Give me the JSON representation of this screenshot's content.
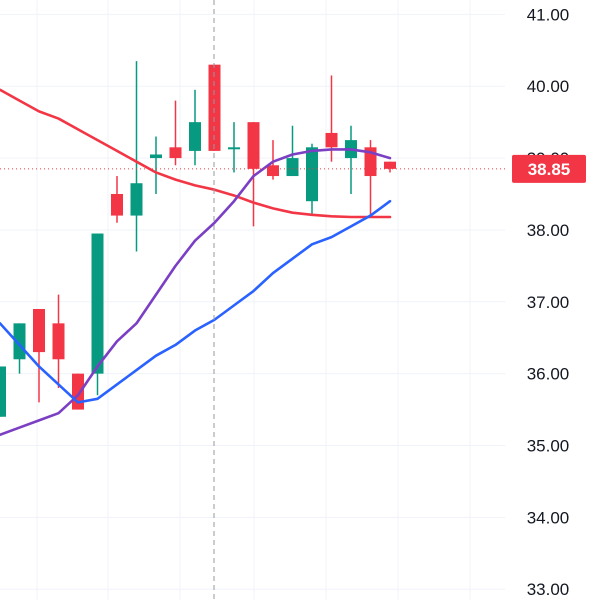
{
  "chart_data": {
    "type": "candlestick",
    "ylim": [
      32.85,
      41.2
    ],
    "y_ticks": [
      "33.00",
      "34.00",
      "35.00",
      "36.00",
      "37.00",
      "38.00",
      "39.00",
      "40.00",
      "41.00"
    ],
    "grid": true,
    "current_price": 38.85,
    "current_price_label": "38.85",
    "colors": {
      "up": "#089981",
      "down": "#f23645",
      "ma_red": "#f23645",
      "ma_purple": "#7b3fc4",
      "ma_blue": "#2962ff",
      "grid": "#f0f3fa",
      "text": "#131722"
    },
    "candles": [
      {
        "o": 35.4,
        "h": 36.1,
        "l": 35.4,
        "c": 36.1
      },
      {
        "o": 36.2,
        "h": 36.7,
        "l": 36.0,
        "c": 36.7
      },
      {
        "o": 36.9,
        "h": 36.9,
        "l": 35.6,
        "c": 36.3
      },
      {
        "o": 36.7,
        "h": 37.1,
        "l": 35.8,
        "c": 36.2
      },
      {
        "o": 36.0,
        "h": 36.0,
        "l": 35.5,
        "c": 35.5
      },
      {
        "o": 36.0,
        "h": 37.95,
        "l": 35.7,
        "c": 37.95
      },
      {
        "o": 38.5,
        "h": 38.75,
        "l": 38.1,
        "c": 38.2
      },
      {
        "o": 38.2,
        "h": 40.35,
        "l": 37.7,
        "c": 38.65
      },
      {
        "o": 39.0,
        "h": 39.3,
        "l": 38.5,
        "c": 39.05
      },
      {
        "o": 39.15,
        "h": 39.8,
        "l": 38.9,
        "c": 39.0
      },
      {
        "o": 39.1,
        "h": 39.95,
        "l": 38.9,
        "c": 39.5
      },
      {
        "o": 40.3,
        "h": 40.3,
        "l": 39.1,
        "c": 39.1
      },
      {
        "o": 39.15,
        "h": 39.5,
        "l": 38.8,
        "c": 39.15
      },
      {
        "o": 39.5,
        "h": 39.5,
        "l": 38.05,
        "c": 38.85
      },
      {
        "o": 38.9,
        "h": 39.25,
        "l": 38.7,
        "c": 38.75
      },
      {
        "o": 38.75,
        "h": 39.45,
        "l": 38.75,
        "c": 39.0
      },
      {
        "o": 38.4,
        "h": 39.2,
        "l": 38.2,
        "c": 39.15
      },
      {
        "o": 39.35,
        "h": 40.15,
        "l": 38.95,
        "c": 39.15
      },
      {
        "o": 39.0,
        "h": 39.45,
        "l": 38.5,
        "c": 39.25
      },
      {
        "o": 39.15,
        "h": 39.25,
        "l": 38.2,
        "c": 38.75
      },
      {
        "o": 38.95,
        "h": 38.95,
        "l": 38.8,
        "c": 38.85
      }
    ],
    "moving_averages": [
      {
        "color": "#f23645",
        "values": [
          39.95,
          39.8,
          39.65,
          39.55,
          39.4,
          39.25,
          39.1,
          38.95,
          38.8,
          38.7,
          38.62,
          38.56,
          38.48,
          38.38,
          38.3,
          38.24,
          38.21,
          38.19,
          38.18,
          38.18,
          38.18
        ]
      },
      {
        "color": "#7b3fc4",
        "values": [
          35.15,
          35.25,
          35.35,
          35.45,
          35.7,
          36.1,
          36.45,
          36.7,
          37.1,
          37.5,
          37.85,
          38.1,
          38.4,
          38.75,
          38.95,
          39.05,
          39.1,
          39.12,
          39.12,
          39.08,
          39.0
        ]
      },
      {
        "color": "#2962ff",
        "values": [
          36.7,
          36.4,
          36.1,
          35.85,
          35.6,
          35.65,
          35.85,
          36.05,
          36.25,
          36.4,
          36.6,
          36.75,
          36.95,
          37.15,
          37.4,
          37.6,
          37.8,
          37.9,
          38.05,
          38.2,
          38.4
        ]
      }
    ]
  }
}
